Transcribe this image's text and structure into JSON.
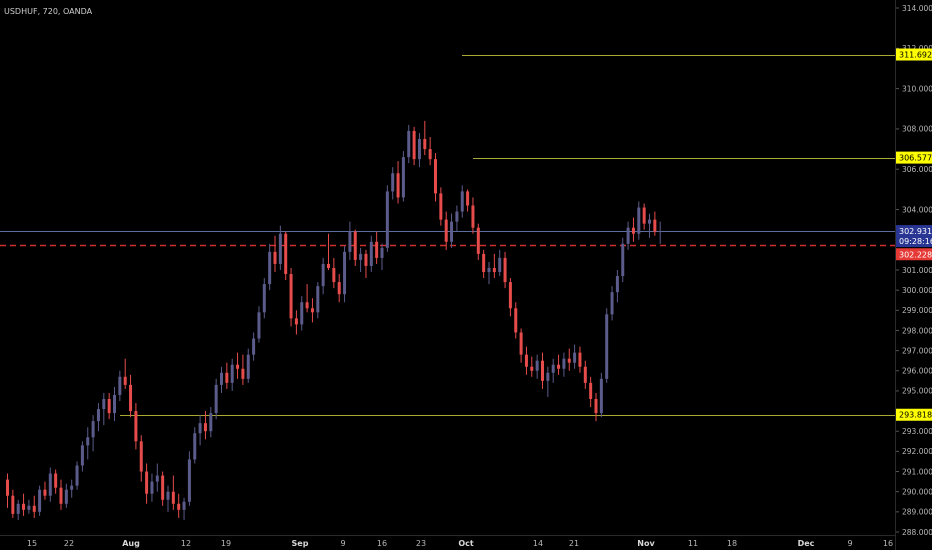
{
  "symbol_label": "USDHUF, 720, OANDA",
  "chart_data": {
    "type": "candlestick",
    "title": "USDHUF, 720, OANDA",
    "ylim": [
      288.0,
      314.0
    ],
    "y_ticks": [
      288.0,
      289.0,
      290.0,
      291.0,
      292.0,
      293.0,
      295.0,
      296.0,
      297.0,
      298.0,
      299.0,
      300.0,
      301.0,
      304.0,
      306.0,
      308.0,
      310.0,
      312.0,
      314.0
    ],
    "y_tick_labels": [
      "288.000",
      "289.000",
      "290.000",
      "291.000",
      "292.000",
      "293.000",
      "295.000",
      "296.000",
      "297.000",
      "298.000",
      "299.000",
      "300.000",
      "301.000",
      "304.000",
      "306.000",
      "308.000",
      "310.000",
      "312.000",
      "314.000"
    ],
    "x_tick_labels": [
      "15",
      "22",
      "Aug",
      "12",
      "19",
      "Sep",
      "9",
      "16",
      "23",
      "Oct",
      "14",
      "21",
      "Nov",
      "11",
      "18",
      "Dec",
      "9",
      "16"
    ],
    "x_tick_bold": [
      "Aug",
      "Sep",
      "Oct",
      "Nov",
      "Dec"
    ],
    "colors": {
      "up": "#5c5c8c",
      "down": "#e74c4c",
      "background": "#000000",
      "horizontal_line": "#a8a832",
      "tag_yellow": "#ffff00",
      "tag_red": "#e53935",
      "tag_blue": "#283593",
      "current_line": "#d32f2f"
    },
    "price_lines": [
      {
        "value": 311.692,
        "label": "311.692"
      },
      {
        "value": 306.577,
        "label": "306.577"
      },
      {
        "value": 293.818,
        "label": "293.818"
      }
    ],
    "last_price": {
      "value": 302.931,
      "label": "302.931",
      "countdown": "09:28:16"
    },
    "current_level": {
      "value": 302.228,
      "label": "302.228"
    },
    "ohlc": [
      [
        290.6,
        290.9,
        289.2,
        289.8
      ],
      [
        289.8,
        290.1,
        288.7,
        288.9
      ],
      [
        288.9,
        289.6,
        288.6,
        289.4
      ],
      [
        289.4,
        289.9,
        288.8,
        289.1
      ],
      [
        289.1,
        289.6,
        288.9,
        289.3
      ],
      [
        289.3,
        289.8,
        288.7,
        289.0
      ],
      [
        289.0,
        290.3,
        288.8,
        290.1
      ],
      [
        290.1,
        290.5,
        289.6,
        289.8
      ],
      [
        289.8,
        291.2,
        289.5,
        290.9
      ],
      [
        290.9,
        291.1,
        289.9,
        290.2
      ],
      [
        290.2,
        290.6,
        289.1,
        289.4
      ],
      [
        289.4,
        290.4,
        289.2,
        290.1
      ],
      [
        290.1,
        290.6,
        289.7,
        290.3
      ],
      [
        290.3,
        291.5,
        290.1,
        291.3
      ],
      [
        291.3,
        292.5,
        291.0,
        292.3
      ],
      [
        292.3,
        293.2,
        291.6,
        292.7
      ],
      [
        292.7,
        293.8,
        292.0,
        293.5
      ],
      [
        293.5,
        294.4,
        293.0,
        294.1
      ],
      [
        294.1,
        294.9,
        293.3,
        294.6
      ],
      [
        294.6,
        294.9,
        293.6,
        293.9
      ],
      [
        293.9,
        295.2,
        293.5,
        294.8
      ],
      [
        294.8,
        296.0,
        294.5,
        295.7
      ],
      [
        295.7,
        296.6,
        295.1,
        295.3
      ],
      [
        295.3,
        295.8,
        293.7,
        294.0
      ],
      [
        294.0,
        294.4,
        292.1,
        292.5
      ],
      [
        292.5,
        292.8,
        290.5,
        291.0
      ],
      [
        291.0,
        291.4,
        289.4,
        289.9
      ],
      [
        289.9,
        290.9,
        289.5,
        290.5
      ],
      [
        290.5,
        291.4,
        290.0,
        290.8
      ],
      [
        290.8,
        291.0,
        289.3,
        289.6
      ],
      [
        289.6,
        290.3,
        289.0,
        290.0
      ],
      [
        290.0,
        290.8,
        289.1,
        289.4
      ],
      [
        289.4,
        289.9,
        288.7,
        289.1
      ],
      [
        289.1,
        289.7,
        288.6,
        289.5
      ],
      [
        289.5,
        292.0,
        289.3,
        291.6
      ],
      [
        291.6,
        293.2,
        291.4,
        292.9
      ],
      [
        292.9,
        293.8,
        292.3,
        293.4
      ],
      [
        293.4,
        294.0,
        292.6,
        293.0
      ],
      [
        293.0,
        294.2,
        292.7,
        293.9
      ],
      [
        293.9,
        295.6,
        293.6,
        295.3
      ],
      [
        295.3,
        296.2,
        294.9,
        295.9
      ],
      [
        295.9,
        296.4,
        295.1,
        295.4
      ],
      [
        295.4,
        296.6,
        295.0,
        296.3
      ],
      [
        296.3,
        296.9,
        295.6,
        296.1
      ],
      [
        296.1,
        296.8,
        295.3,
        295.6
      ],
      [
        295.6,
        297.1,
        295.4,
        296.8
      ],
      [
        296.8,
        297.9,
        296.5,
        297.6
      ],
      [
        297.6,
        299.2,
        297.4,
        298.9
      ],
      [
        298.9,
        300.6,
        298.6,
        300.3
      ],
      [
        300.3,
        302.3,
        300.0,
        301.9
      ],
      [
        301.9,
        302.7,
        300.9,
        301.3
      ],
      [
        301.3,
        303.2,
        301.0,
        302.8
      ],
      [
        302.8,
        302.9,
        300.5,
        300.8
      ],
      [
        300.8,
        301.1,
        298.2,
        298.6
      ],
      [
        298.6,
        299.0,
        297.8,
        298.3
      ],
      [
        298.3,
        299.7,
        298.0,
        299.4
      ],
      [
        299.4,
        300.3,
        298.9,
        299.1
      ],
      [
        299.1,
        299.6,
        298.4,
        298.9
      ],
      [
        298.9,
        300.4,
        298.6,
        300.2
      ],
      [
        300.2,
        301.6,
        299.8,
        301.3
      ],
      [
        301.3,
        302.8,
        301.0,
        301.1
      ],
      [
        301.1,
        301.6,
        300.1,
        300.4
      ],
      [
        300.4,
        300.8,
        299.4,
        299.8
      ],
      [
        299.8,
        302.2,
        299.4,
        301.9
      ],
      [
        301.9,
        303.4,
        301.5,
        302.9
      ],
      [
        302.9,
        303.0,
        301.2,
        301.5
      ],
      [
        301.5,
        302.1,
        300.9,
        301.8
      ],
      [
        301.8,
        302.0,
        300.6,
        301.2
      ],
      [
        301.2,
        302.7,
        300.9,
        302.4
      ],
      [
        302.4,
        302.9,
        301.3,
        301.6
      ],
      [
        301.6,
        302.3,
        301.0,
        302.1
      ],
      [
        302.1,
        305.2,
        301.9,
        304.9
      ],
      [
        304.9,
        306.1,
        304.5,
        305.8
      ],
      [
        305.8,
        306.4,
        304.3,
        304.6
      ],
      [
        304.6,
        306.9,
        304.4,
        306.6
      ],
      [
        306.6,
        308.2,
        306.3,
        307.9
      ],
      [
        307.9,
        308.1,
        306.2,
        306.5
      ],
      [
        306.5,
        307.8,
        306.1,
        307.5
      ],
      [
        307.5,
        308.4,
        306.7,
        307.0
      ],
      [
        307.0,
        307.6,
        306.2,
        306.5
      ],
      [
        306.5,
        306.8,
        304.4,
        304.8
      ],
      [
        304.8,
        305.1,
        303.2,
        303.5
      ],
      [
        303.5,
        303.9,
        302.0,
        302.4
      ],
      [
        302.4,
        303.8,
        302.1,
        303.4
      ],
      [
        303.4,
        304.2,
        302.9,
        303.9
      ],
      [
        303.9,
        305.2,
        303.6,
        304.9
      ],
      [
        304.9,
        305.0,
        303.9,
        304.2
      ],
      [
        304.2,
        304.6,
        302.8,
        303.1
      ],
      [
        303.1,
        303.3,
        301.5,
        301.8
      ],
      [
        301.8,
        302.0,
        300.6,
        300.9
      ],
      [
        300.9,
        301.4,
        300.3,
        301.1
      ],
      [
        301.1,
        301.8,
        300.6,
        300.9
      ],
      [
        300.9,
        302.0,
        300.7,
        301.6
      ],
      [
        301.6,
        301.9,
        300.1,
        300.4
      ],
      [
        300.4,
        300.6,
        298.7,
        299.1
      ],
      [
        299.1,
        299.4,
        297.6,
        297.9
      ],
      [
        297.9,
        298.1,
        296.4,
        296.8
      ],
      [
        296.8,
        297.2,
        295.8,
        296.2
      ],
      [
        296.2,
        296.7,
        295.7,
        296.0
      ],
      [
        296.0,
        296.8,
        295.6,
        296.5
      ],
      [
        296.5,
        296.9,
        295.1,
        295.5
      ],
      [
        295.5,
        296.2,
        294.7,
        295.9
      ],
      [
        295.9,
        296.6,
        295.4,
        296.3
      ],
      [
        296.3,
        296.8,
        295.8,
        296.1
      ],
      [
        296.1,
        296.9,
        295.7,
        296.6
      ],
      [
        296.6,
        297.1,
        296.0,
        296.4
      ],
      [
        296.4,
        297.3,
        296.1,
        296.9
      ],
      [
        296.9,
        297.2,
        295.9,
        296.2
      ],
      [
        296.2,
        296.5,
        295.1,
        295.4
      ],
      [
        295.4,
        295.7,
        294.2,
        294.6
      ],
      [
        294.6,
        294.9,
        293.5,
        293.9
      ],
      [
        293.9,
        295.9,
        293.7,
        295.6
      ],
      [
        295.6,
        299.1,
        295.4,
        298.8
      ],
      [
        298.8,
        300.2,
        298.5,
        299.9
      ],
      [
        299.9,
        301.0,
        299.4,
        300.7
      ],
      [
        300.7,
        302.6,
        300.4,
        302.3
      ],
      [
        302.3,
        303.4,
        302.0,
        303.1
      ],
      [
        303.1,
        303.6,
        302.4,
        302.8
      ],
      [
        302.8,
        304.4,
        302.5,
        304.1
      ],
      [
        304.1,
        304.3,
        303.0,
        303.3
      ],
      [
        303.3,
        303.8,
        302.6,
        303.5
      ],
      [
        303.5,
        303.9,
        302.7,
        302.9
      ],
      [
        302.9,
        303.4,
        302.3,
        302.931
      ]
    ]
  }
}
